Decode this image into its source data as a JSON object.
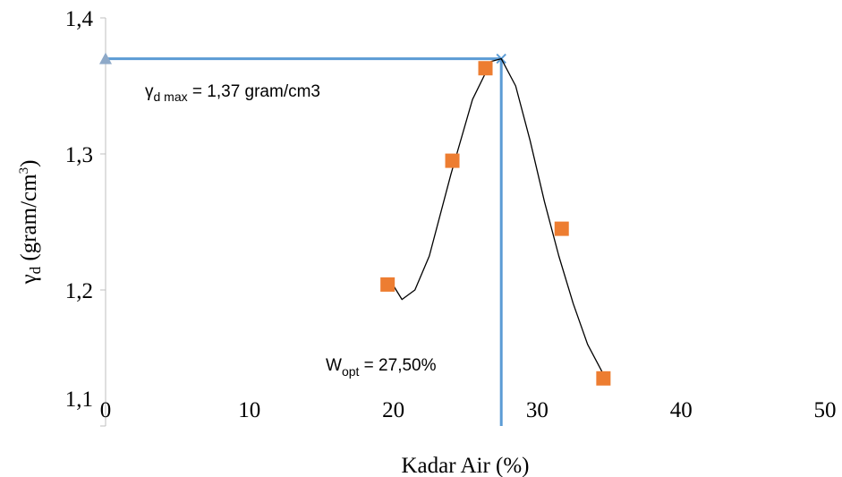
{
  "chart_data": {
    "type": "scatter",
    "x_label": "Kadar Air (%)",
    "y_label": [
      "γ",
      "d",
      " (gram/cm",
      "3",
      ")"
    ],
    "xlim": [
      0,
      50
    ],
    "xticks": [
      0,
      10,
      20,
      30,
      40,
      50
    ],
    "ylim": [
      1.1,
      1.4
    ],
    "yticks": [
      {
        "value": 1.1,
        "label": "1,1"
      },
      {
        "value": 1.2,
        "label": "1,2"
      },
      {
        "value": 1.3,
        "label": "1,3"
      },
      {
        "value": 1.4,
        "label": "1,4"
      }
    ],
    "series": [
      {
        "color": "#ed7d31",
        "x": [
          19.6,
          24.1,
          26.4,
          31.7,
          34.6
        ],
        "values": [
          1.204,
          1.295,
          1.363,
          1.245,
          1.135
        ]
      }
    ],
    "trendline": {
      "color": "#000000",
      "x": [
        19.9,
        20.6,
        21.5,
        22.5,
        24,
        25.5,
        26.8,
        27.5,
        28.5,
        29.5,
        30.5,
        31.5,
        32.5,
        33.5,
        34.7
      ],
      "values": [
        1.205,
        1.193,
        1.2,
        1.225,
        1.285,
        1.34,
        1.368,
        1.37,
        1.35,
        1.31,
        1.265,
        1.225,
        1.19,
        1.16,
        1.136
      ]
    },
    "reference": {
      "color": "#5b9bd5",
      "x": 27.5,
      "y": 1.37
    },
    "annotations": [
      [
        "γ",
        "d max",
        " = 1,37 gram/cm3"
      ],
      [
        "W",
        "opt",
        "  = 27,50%"
      ]
    ]
  }
}
